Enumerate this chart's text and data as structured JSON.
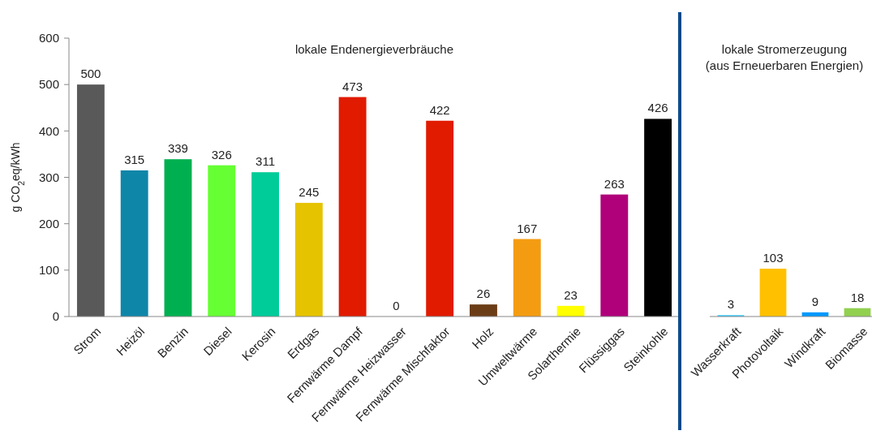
{
  "chart_data": [
    {
      "type": "bar",
      "ylabel": "g CO$_{2}$eq/kWh",
      "categories": [
        "Strom",
        "Heizöl",
        "Benzin",
        "Diesel",
        "Kerosin",
        "Erdgas",
        "Fernwärme Dampf",
        "Fernwärme Heizwasser",
        "Fernwärme Mischfaktor",
        "Holz",
        "Umweltwärme",
        "Solarthermie",
        "Flüssiggas",
        "Steinkohle"
      ],
      "values": [
        500,
        315,
        339,
        326,
        311,
        245,
        473,
        0,
        422,
        26,
        167,
        23,
        263,
        426
      ],
      "colors": [
        "#595959",
        "#0e86a8",
        "#00b050",
        "#66ff33",
        "#00cc99",
        "#e6c300",
        "#e01b00",
        "#e01b00",
        "#e01b00",
        "#6b3d17",
        "#f39c12",
        "#ffff00",
        "#b0007a",
        "#000000"
      ],
      "ylim": [
        0,
        600
      ],
      "yticks": [
        0,
        100,
        200,
        300,
        400,
        500,
        600
      ],
      "data_labels": true,
      "annotations": [
        "lokale Endenergieverbräuche"
      ]
    },
    {
      "type": "bar",
      "categories": [
        "Wasserkraft",
        "Photovoltaik",
        "Windkraft",
        "Biomasse"
      ],
      "values": [
        3,
        103,
        9,
        18
      ],
      "colors": [
        "#33ccff",
        "#ffc000",
        "#0099ff",
        "#92d050"
      ],
      "ylim": [
        0,
        600
      ],
      "tick_labels": "x",
      "data_labels": true,
      "annotations": [
        "lokale Stromerzeugung\n(aus Erneuerbaren Energien)"
      ]
    }
  ]
}
